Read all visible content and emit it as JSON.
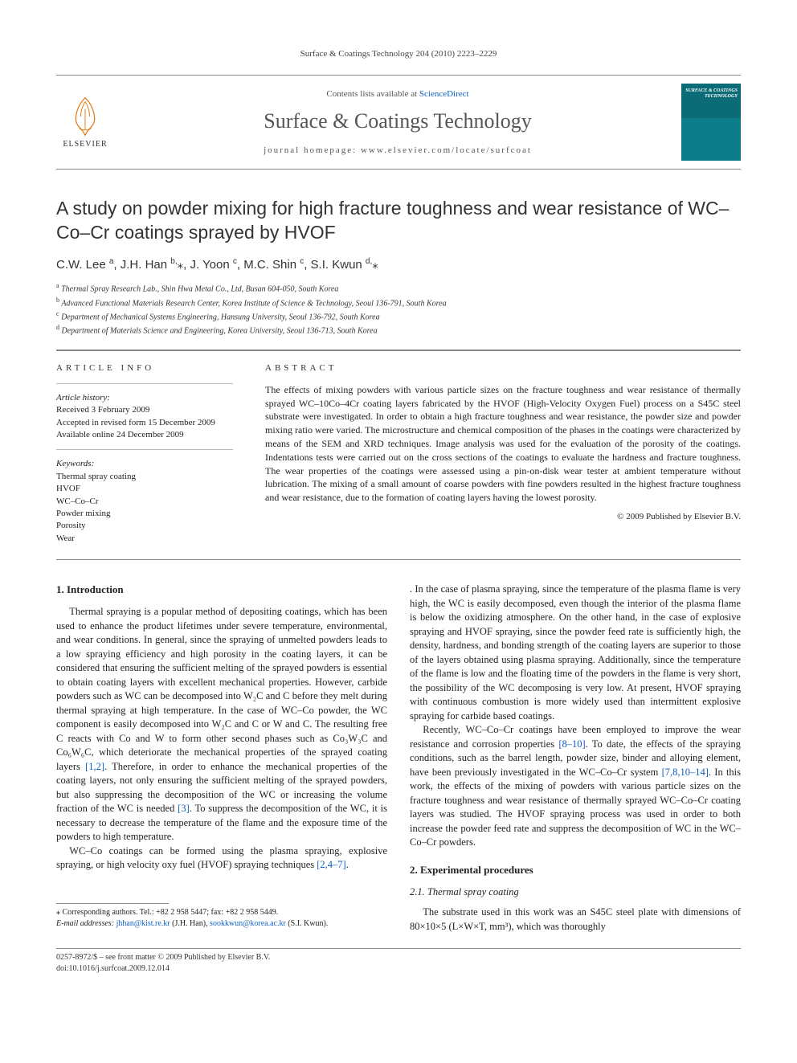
{
  "running_head": "Surface & Coatings Technology 204 (2010) 2223–2229",
  "banner": {
    "contents_prefix": "Contents lists available at ",
    "contents_link": "ScienceDirect",
    "journal_name": "Surface & Coatings Technology",
    "homepage_prefix": "journal homepage: ",
    "homepage": "www.elsevier.com/locate/surfcoat",
    "publisher_name": "ELSEVIER",
    "cover_text": "SURFACE & COATINGS TECHNOLOGY"
  },
  "title": "A study on powder mixing for high fracture toughness and wear resistance of WC–Co–Cr coatings sprayed by HVOF",
  "authors_html": "C.W. Lee <sup>a</sup>, J.H. Han <sup>b,</sup><span class='star'>⁎</span>, J. Yoon <sup>c</sup>, M.C. Shin <sup>c</sup>, S.I. Kwun <sup>d,</sup><span class='star'>⁎</span>",
  "affiliations": [
    {
      "key": "a",
      "text": "Thermal Spray Research Lab., Shin Hwa Metal Co., Ltd, Busan 604-050, South Korea"
    },
    {
      "key": "b",
      "text": "Advanced Functional Materials Research Center, Korea Institute of Science & Technology, Seoul 136-791, South Korea"
    },
    {
      "key": "c",
      "text": "Department of Mechanical Systems Engineering, Hansung University, Seoul 136-792, South Korea"
    },
    {
      "key": "d",
      "text": "Department of Materials Science and Engineering, Korea University, Seoul 136-713, South Korea"
    }
  ],
  "article_info": {
    "heading": "ARTICLE INFO",
    "history_label": "Article history:",
    "received": "Received 3 February 2009",
    "revised": "Accepted in revised form 15 December 2009",
    "online": "Available online 24 December 2009",
    "keywords_label": "Keywords:",
    "keywords": [
      "Thermal spray coating",
      "HVOF",
      "WC–Co–Cr",
      "Powder mixing",
      "Porosity",
      "Wear"
    ]
  },
  "abstract": {
    "heading": "ABSTRACT",
    "text": "The effects of mixing powders with various particle sizes on the fracture toughness and wear resistance of thermally sprayed WC–10Co–4Cr coating layers fabricated by the HVOF (High-Velocity Oxygen Fuel) process on a S45C steel substrate were investigated. In order to obtain a high fracture toughness and wear resistance, the powder size and powder mixing ratio were varied. The microstructure and chemical composition of the phases in the coatings were characterized by means of the SEM and XRD techniques. Image analysis was used for the evaluation of the porosity of the coatings. Indentations tests were carried out on the cross sections of the coatings to evaluate the hardness and fracture toughness. The wear properties of the coatings were assessed using a pin-on-disk wear tester at ambient temperature without lubrication. The mixing of a small amount of coarse powders with fine powders resulted in the highest fracture toughness and wear resistance, due to the formation of coating layers having the lowest porosity.",
    "copyright": "© 2009 Published by Elsevier B.V."
  },
  "sections": {
    "intro_heading": "1. Introduction",
    "intro_p1": "Thermal spraying is a popular method of depositing coatings, which has been used to enhance the product lifetimes under severe temperature, environmental, and wear conditions. In general, since the spraying of unmelted powders leads to a low spraying efficiency and high porosity in the coating layers, it can be considered that ensuring the sufficient melting of the sprayed powders is essential to obtain coating layers with excellent mechanical properties. However, carbide powders such as WC can be decomposed into W₂C and C before they melt during thermal spraying at high temperature. In the case of WC–Co powder, the WC component is easily decomposed into W₂C and C or W and C. The resulting free C reacts with Co and W to form other second phases such as Co₃W₃C and Co₆W₆C, which deteriorate the mechanical properties of the sprayed coating layers ",
    "intro_p1_ref": "[1,2]",
    "intro_p1b": ". Therefore, in order to enhance the mechanical properties of the coating layers, not only ensuring the sufficient melting of the sprayed powders, but also suppressing the decomposition of the WC or increasing the volume fraction of the WC is needed ",
    "intro_p1b_ref": "[3]",
    "intro_p1c": ". To suppress the decomposition of the WC, it is necessary to decrease the temperature of the flame and the exposure time of the powders to high temperature.",
    "intro_p2": "WC–Co coatings can be formed using the plasma spraying, explosive spraying, or high velocity oxy fuel (HVOF) spraying techniques ",
    "intro_p2_ref": "[2,4–7]",
    "intro_p2b": ". In the case of plasma spraying, since the temperature of the plasma flame is very high, the WC is easily decomposed, even though the interior of the plasma flame is below the oxidizing atmosphere. On the other hand, in the case of explosive spraying and HVOF spraying, since the powder feed rate is sufficiently high, the density, hardness, and bonding strength of the coating layers are superior to those of the layers obtained using plasma spraying. Additionally, since the temperature of the flame is low and the floating time of the powders in the flame is very short, the possibility of the WC decomposing is very low. At present, HVOF spraying with continuous combustion is more widely used than intermittent explosive spraying for carbide based coatings.",
    "intro_p3": "Recently, WC–Co–Cr coatings have been employed to improve the wear resistance and corrosion properties ",
    "intro_p3_ref": "[8–10]",
    "intro_p3b": ". To date, the effects of the spraying conditions, such as the barrel length, powder size, binder and alloying element, have been previously investigated in the WC–Co–Cr system ",
    "intro_p3b_ref": "[7,8,10–14]",
    "intro_p3c": ". In this work, the effects of the mixing of powders with various particle sizes on the fracture toughness and wear resistance of thermally sprayed WC–Co–Cr coating layers was studied. The HVOF spraying process was used in order to both increase the powder feed rate and suppress the decomposition of WC in the WC–Co–Cr powders.",
    "exp_heading": "2. Experimental procedures",
    "exp_sub": "2.1. Thermal spray coating",
    "exp_p1": "The substrate used in this work was an S45C steel plate with dimensions of 80×10×5 (L×W×T, mm³), which was thoroughly"
  },
  "footnotes": {
    "corr": "⁎ Corresponding authors. Tel.: +82 2 958 5447; fax: +82 2 958 5449.",
    "emails_label": "E-mail addresses: ",
    "email1": "jhhan@kist.re.kr",
    "email1_who": " (J.H. Han), ",
    "email2": "sookkwun@korea.ac.kr",
    "email2_who": " (S.I. Kwun)."
  },
  "bottom": {
    "issn": "0257-8972/$ – see front matter © 2009 Published by Elsevier B.V.",
    "doi": "doi:10.1016/j.surfcoat.2009.12.014"
  },
  "colors": {
    "link": "#1060c0",
    "rule": "#888888",
    "elsevier_orange": "#e67817",
    "cover_teal": "#0b6b77"
  }
}
